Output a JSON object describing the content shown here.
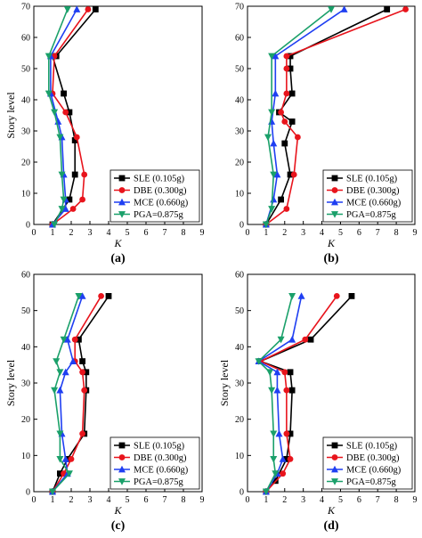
{
  "colors": {
    "SLE": "#000000",
    "DBE": "#e8141c",
    "MCE": "#1f3ff2",
    "PGA": "#1aa06a"
  },
  "chart_data": [
    {
      "type": "line",
      "panel_label": "(a)",
      "xlabel": "K",
      "ylabel": "Story level",
      "xlim": [
        0,
        9
      ],
      "ylim": [
        0,
        70
      ],
      "xticks": [
        "0",
        "1",
        "2",
        "3",
        "4",
        "5",
        "6",
        "7",
        "8",
        "9"
      ],
      "yticks": [
        "0",
        "10",
        "20",
        "30",
        "40",
        "50",
        "60",
        "70"
      ],
      "legend_position": "bottom-right",
      "series": [
        {
          "name": "SLE (0.105g)",
          "marker": "square",
          "x": [
            1.0,
            1.9,
            2.2,
            2.2,
            1.9,
            1.6,
            1.0,
            1.2,
            3.3
          ],
          "y": [
            0,
            8,
            16,
            27,
            36,
            42,
            54,
            54,
            69
          ]
        },
        {
          "name": "DBE (0.300g)",
          "marker": "circle",
          "x": [
            1.0,
            2.1,
            2.6,
            2.7,
            2.3,
            1.7,
            1.0,
            1.1,
            2.9
          ],
          "y": [
            0,
            5,
            8,
            16,
            28,
            36,
            42,
            54,
            69
          ]
        },
        {
          "name": "MCE (0.660g)",
          "marker": "triangle-up",
          "x": [
            1.0,
            1.7,
            1.7,
            1.6,
            1.5,
            1.3,
            0.9,
            0.9,
            2.3
          ],
          "y": [
            0,
            5,
            8,
            16,
            28,
            33,
            42,
            54,
            69
          ]
        },
        {
          "name": "PGA=0.875g",
          "marker": "triangle-down",
          "x": [
            1.1,
            1.5,
            1.6,
            1.5,
            1.4,
            1.1,
            0.8,
            0.8,
            1.8
          ],
          "y": [
            0,
            5,
            8,
            16,
            28,
            36,
            42,
            54,
            69
          ]
        }
      ]
    },
    {
      "type": "line",
      "panel_label": "(b)",
      "xlabel": "K",
      "ylabel": "",
      "xlim": [
        0,
        9
      ],
      "ylim": [
        0,
        70
      ],
      "xticks": [
        "0",
        "1",
        "2",
        "3",
        "4",
        "5",
        "6",
        "7",
        "8",
        "9"
      ],
      "yticks": [
        "0",
        "10",
        "20",
        "30",
        "40",
        "50",
        "60",
        "70"
      ],
      "legend_position": "bottom-right",
      "series": [
        {
          "name": "SLE (0.105g)",
          "marker": "square",
          "x": [
            1.0,
            1.8,
            2.3,
            2.0,
            2.4,
            1.7,
            2.4,
            2.3,
            2.3,
            7.5
          ],
          "y": [
            0,
            8,
            16,
            26,
            33,
            36,
            42,
            50,
            54,
            69
          ]
        },
        {
          "name": "DBE (0.300g)",
          "marker": "circle",
          "x": [
            1.0,
            2.1,
            2.5,
            2.7,
            2.0,
            1.8,
            2.1,
            2.1,
            2.1,
            8.5
          ],
          "y": [
            0,
            5,
            16,
            28,
            33,
            36,
            42,
            50,
            54,
            69
          ]
        },
        {
          "name": "MCE (0.660g)",
          "marker": "triangle-up",
          "x": [
            1.0,
            1.4,
            1.6,
            1.4,
            1.3,
            1.5,
            1.5,
            5.2
          ],
          "y": [
            0,
            8,
            16,
            26,
            33,
            42,
            54,
            69
          ]
        },
        {
          "name": "PGA=0.875g",
          "marker": "triangle-down",
          "x": [
            1.0,
            1.3,
            1.4,
            1.1,
            1.3,
            1.3,
            4.5
          ],
          "y": [
            0,
            5,
            16,
            28,
            36,
            54,
            69
          ]
        }
      ]
    },
    {
      "type": "line",
      "panel_label": "(c)",
      "xlabel": "K",
      "ylabel": "Story level",
      "xlim": [
        0,
        9
      ],
      "ylim": [
        0,
        60
      ],
      "xticks": [
        "0",
        "1",
        "2",
        "3",
        "4",
        "5",
        "6",
        "7",
        "8",
        "9"
      ],
      "yticks": [
        "0",
        "10",
        "20",
        "30",
        "40",
        "50",
        "60"
      ],
      "legend_position": "bottom-right",
      "series": [
        {
          "name": "SLE (0.105g)",
          "marker": "square",
          "x": [
            1.0,
            1.4,
            1.8,
            2.7,
            2.8,
            2.8,
            2.6,
            2.4,
            4.0
          ],
          "y": [
            0,
            5,
            9,
            16,
            28,
            33,
            36,
            42,
            54
          ]
        },
        {
          "name": "DBE (0.300g)",
          "marker": "circle",
          "x": [
            1.0,
            1.6,
            2.0,
            2.6,
            2.7,
            2.6,
            2.2,
            2.2,
            3.6
          ],
          "y": [
            0,
            5,
            9,
            16,
            28,
            33,
            36,
            42,
            54
          ]
        },
        {
          "name": "MCE (0.660g)",
          "marker": "triangle-up",
          "x": [
            1.0,
            1.8,
            1.7,
            1.5,
            1.4,
            1.7,
            2.1,
            1.8,
            2.6
          ],
          "y": [
            0,
            5,
            9,
            16,
            28,
            33,
            36,
            42,
            54
          ]
        },
        {
          "name": "PGA=0.875g",
          "marker": "triangle-down",
          "x": [
            1.0,
            1.9,
            1.4,
            1.4,
            1.1,
            1.4,
            1.2,
            1.6,
            2.4
          ],
          "y": [
            0,
            5,
            9,
            16,
            28,
            33,
            36,
            42,
            54
          ]
        }
      ]
    },
    {
      "type": "line",
      "panel_label": "(d)",
      "xlabel": "K",
      "ylabel": "Story level",
      "xlim": [
        0,
        9
      ],
      "ylim": [
        0,
        60
      ],
      "xticks": [
        "0",
        "1",
        "2",
        "3",
        "4",
        "5",
        "6",
        "7",
        "8",
        "9"
      ],
      "yticks": [
        "0",
        "10",
        "20",
        "30",
        "40",
        "50",
        "60"
      ],
      "legend_position": "bottom-right",
      "series": [
        {
          "name": "SLE (0.105g)",
          "marker": "square",
          "x": [
            1.0,
            1.5,
            2.1,
            2.3,
            2.4,
            2.3,
            0.7,
            3.4,
            5.6
          ],
          "y": [
            0,
            3,
            9,
            16,
            28,
            33,
            36,
            42,
            54
          ]
        },
        {
          "name": "DBE (0.300g)",
          "marker": "circle",
          "x": [
            1.0,
            1.9,
            2.3,
            2.1,
            2.1,
            2.0,
            0.7,
            3.1,
            4.8
          ],
          "y": [
            0,
            5,
            9,
            16,
            28,
            33,
            36,
            42,
            54
          ]
        },
        {
          "name": "MCE (0.660g)",
          "marker": "triangle-up",
          "x": [
            1.0,
            1.6,
            1.9,
            1.7,
            1.6,
            1.6,
            0.6,
            2.4,
            2.9
          ],
          "y": [
            0,
            5,
            9,
            16,
            28,
            33,
            36,
            42,
            54
          ]
        },
        {
          "name": "PGA=0.875g",
          "marker": "triangle-down",
          "x": [
            1.0,
            1.5,
            1.4,
            1.4,
            1.3,
            1.2,
            0.6,
            1.8,
            2.4
          ],
          "y": [
            0,
            5,
            9,
            16,
            28,
            33,
            36,
            42,
            54
          ]
        }
      ]
    }
  ]
}
